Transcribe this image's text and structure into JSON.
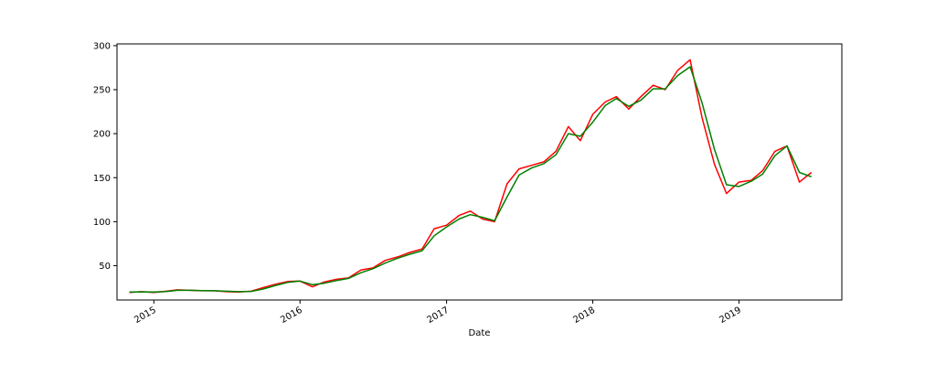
{
  "chart_data": {
    "type": "line",
    "title": "",
    "xlabel": "Date",
    "ylabel": "",
    "ylim": [
      11,
      302
    ],
    "xlim": [
      "2014-10-01",
      "2019-09-15"
    ],
    "yticks": [
      50,
      100,
      150,
      200,
      250,
      300
    ],
    "xticks": [
      "2015-01-01",
      "2016-01-01",
      "2017-01-01",
      "2018-01-01",
      "2019-01-01"
    ],
    "xtick_labels": [
      "2015",
      "2016",
      "2017",
      "2018",
      "2019"
    ],
    "grid": false,
    "legend": "none",
    "series": [
      {
        "color": "#ff0000",
        "points": [
          [
            "2014-11-01",
            19.5
          ],
          [
            "2014-12-01",
            20.5
          ],
          [
            "2015-01-01",
            19.5
          ],
          [
            "2015-02-01",
            21.0
          ],
          [
            "2015-03-01",
            22.5
          ],
          [
            "2015-04-01",
            22.0
          ],
          [
            "2015-05-01",
            21.5
          ],
          [
            "2015-06-01",
            21.5
          ],
          [
            "2015-07-01",
            20.5
          ],
          [
            "2015-08-01",
            20.0
          ],
          [
            "2015-09-01",
            21.0
          ],
          [
            "2015-10-01",
            25.0
          ],
          [
            "2015-11-01",
            29.0
          ],
          [
            "2015-12-01",
            32.0
          ],
          [
            "2016-01-01",
            32.5
          ],
          [
            "2016-02-01",
            26.0
          ],
          [
            "2016-03-01",
            31.5
          ],
          [
            "2016-04-01",
            34.5
          ],
          [
            "2016-05-01",
            36.0
          ],
          [
            "2016-06-01",
            45.0
          ],
          [
            "2016-07-01",
            47.5
          ],
          [
            "2016-08-01",
            56.0
          ],
          [
            "2016-09-01",
            60.0
          ],
          [
            "2016-10-01",
            65.0
          ],
          [
            "2016-11-01",
            69.0
          ],
          [
            "2016-12-01",
            92.0
          ],
          [
            "2017-01-01",
            96.0
          ],
          [
            "2017-02-01",
            107.0
          ],
          [
            "2017-03-01",
            112.0
          ],
          [
            "2017-04-01",
            103.0
          ],
          [
            "2017-05-01",
            100.0
          ],
          [
            "2017-06-01",
            143.0
          ],
          [
            "2017-07-01",
            160.0
          ],
          [
            "2017-08-01",
            164.0
          ],
          [
            "2017-09-01",
            168.0
          ],
          [
            "2017-10-01",
            180.0
          ],
          [
            "2017-11-01",
            208.0
          ],
          [
            "2017-12-01",
            192.0
          ],
          [
            "2018-01-01",
            222.0
          ],
          [
            "2018-02-01",
            236.0
          ],
          [
            "2018-03-01",
            242.0
          ],
          [
            "2018-04-01",
            228.0
          ],
          [
            "2018-05-01",
            242.0
          ],
          [
            "2018-06-01",
            255.0
          ],
          [
            "2018-07-01",
            250.0
          ],
          [
            "2018-08-01",
            272.0
          ],
          [
            "2018-09-01",
            284.0
          ],
          [
            "2018-10-01",
            218.0
          ],
          [
            "2018-11-01",
            165.0
          ],
          [
            "2018-12-01",
            132.0
          ],
          [
            "2019-01-01",
            145.0
          ],
          [
            "2019-02-01",
            147.0
          ],
          [
            "2019-03-01",
            158.0
          ],
          [
            "2019-04-01",
            180.0
          ],
          [
            "2019-05-01",
            186.0
          ],
          [
            "2019-06-01",
            145.0
          ],
          [
            "2019-07-01",
            156.0
          ]
        ]
      },
      {
        "color": "#008000",
        "points": [
          [
            "2014-11-01",
            20.0
          ],
          [
            "2014-12-01",
            20.3
          ],
          [
            "2015-01-01",
            20.0
          ],
          [
            "2015-02-01",
            20.6
          ],
          [
            "2015-03-01",
            22.0
          ],
          [
            "2015-04-01",
            22.0
          ],
          [
            "2015-05-01",
            21.7
          ],
          [
            "2015-06-01",
            21.5
          ],
          [
            "2015-07-01",
            21.0
          ],
          [
            "2015-08-01",
            20.5
          ],
          [
            "2015-09-01",
            20.8
          ],
          [
            "2015-10-01",
            23.5
          ],
          [
            "2015-11-01",
            27.5
          ],
          [
            "2015-12-01",
            31.0
          ],
          [
            "2016-01-01",
            32.5
          ],
          [
            "2016-02-01",
            28.5
          ],
          [
            "2016-03-01",
            30.0
          ],
          [
            "2016-04-01",
            33.0
          ],
          [
            "2016-05-01",
            35.5
          ],
          [
            "2016-06-01",
            42.0
          ],
          [
            "2016-07-01",
            46.5
          ],
          [
            "2016-08-01",
            53.0
          ],
          [
            "2016-09-01",
            58.5
          ],
          [
            "2016-10-01",
            63.0
          ],
          [
            "2016-11-01",
            67.0
          ],
          [
            "2016-12-01",
            84.0
          ],
          [
            "2017-01-01",
            94.0
          ],
          [
            "2017-02-01",
            103.0
          ],
          [
            "2017-03-01",
            108.0
          ],
          [
            "2017-04-01",
            105.0
          ],
          [
            "2017-05-01",
            101.0
          ],
          [
            "2017-06-01",
            128.0
          ],
          [
            "2017-07-01",
            153.0
          ],
          [
            "2017-08-01",
            161.0
          ],
          [
            "2017-09-01",
            166.0
          ],
          [
            "2017-10-01",
            176.0
          ],
          [
            "2017-11-01",
            200.0
          ],
          [
            "2017-12-01",
            197.0
          ],
          [
            "2018-01-01",
            213.0
          ],
          [
            "2018-02-01",
            232.0
          ],
          [
            "2018-03-01",
            240.0
          ],
          [
            "2018-04-01",
            231.0
          ],
          [
            "2018-05-01",
            238.0
          ],
          [
            "2018-06-01",
            251.0
          ],
          [
            "2018-07-01",
            251.0
          ],
          [
            "2018-08-01",
            266.0
          ],
          [
            "2018-09-01",
            276.0
          ],
          [
            "2018-10-01",
            235.0
          ],
          [
            "2018-11-01",
            182.0
          ],
          [
            "2018-12-01",
            142.0
          ],
          [
            "2019-01-01",
            140.0
          ],
          [
            "2019-02-01",
            146.0
          ],
          [
            "2019-03-01",
            154.0
          ],
          [
            "2019-04-01",
            175.0
          ],
          [
            "2019-05-01",
            186.0
          ],
          [
            "2019-06-01",
            156.0
          ],
          [
            "2019-07-01",
            151.0
          ]
        ]
      }
    ]
  }
}
